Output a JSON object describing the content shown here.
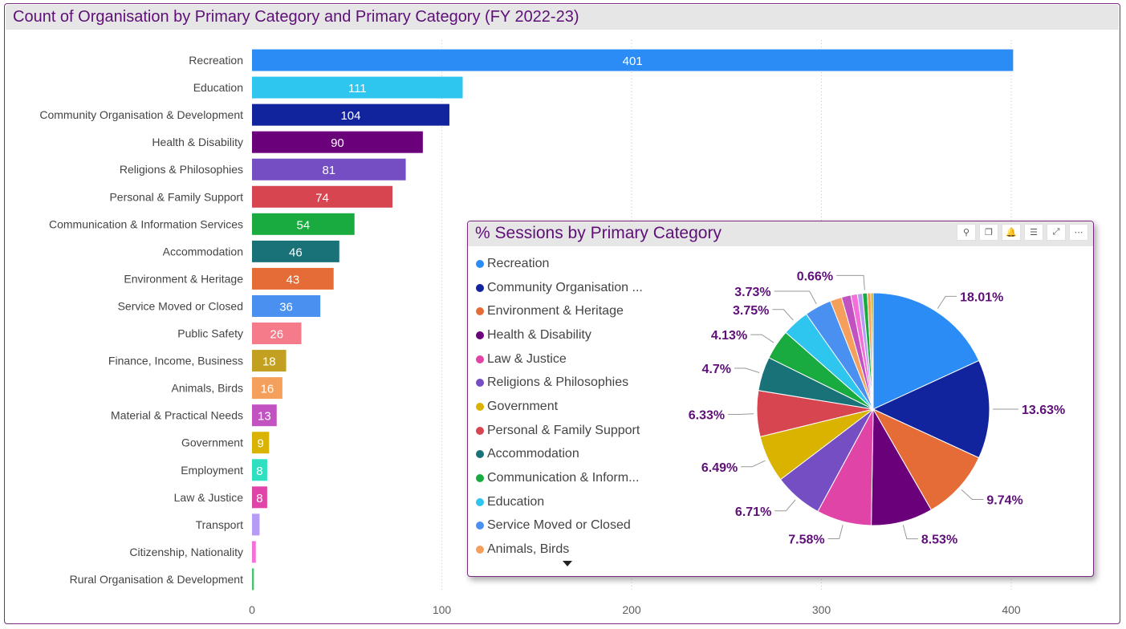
{
  "bar_chart": {
    "title": "Count of Organisation by Primary Category and Primary Category (FY 2022-23)"
  },
  "pie_chart": {
    "title": "% Sessions by Primary Category",
    "toolbar": [
      {
        "name": "pin-icon",
        "glyph": "⚲"
      },
      {
        "name": "copy-icon",
        "glyph": "❐"
      },
      {
        "name": "bell-icon",
        "glyph": "🔔"
      },
      {
        "name": "filter-icon",
        "glyph": "☰"
      },
      {
        "name": "focus-mode-icon",
        "glyph": "⤢"
      },
      {
        "name": "more-options-icon",
        "glyph": "⋯"
      }
    ],
    "legend": [
      {
        "label": "Recreation",
        "color": "#2b8cf5"
      },
      {
        "label": "Community Organisation ...",
        "color": "#12239e"
      },
      {
        "label": "Environment & Heritage",
        "color": "#e66c37"
      },
      {
        "label": "Health & Disability",
        "color": "#6b007b"
      },
      {
        "label": "Law & Justice",
        "color": "#e044a7"
      },
      {
        "label": "Religions & Philosophies",
        "color": "#744ec2"
      },
      {
        "label": "Government",
        "color": "#d9b300"
      },
      {
        "label": "Personal & Family Support",
        "color": "#d64550"
      },
      {
        "label": "Accommodation",
        "color": "#197278"
      },
      {
        "label": "Communication & Inform...",
        "color": "#1aab40"
      },
      {
        "label": "Education",
        "color": "#2ec5ef"
      },
      {
        "label": "Service Moved or Closed",
        "color": "#4a90f0"
      },
      {
        "label": "Animals, Birds",
        "color": "#f4a05c"
      }
    ]
  },
  "chart_data": [
    {
      "type": "bar",
      "orientation": "horizontal",
      "title": "Count of Organisation by Primary Category and Primary Category (FY 2022-23)",
      "categories": [
        "Recreation",
        "Education",
        "Community Organisation & Development",
        "Health & Disability",
        "Religions & Philosophies",
        "Personal & Family Support",
        "Communication & Information Services",
        "Accommodation",
        "Environment & Heritage",
        "Service Moved or Closed",
        "Public Safety",
        "Finance, Income, Business",
        "Animals, Birds",
        "Material & Practical Needs",
        "Government",
        "Employment",
        "Law & Justice",
        "Transport",
        "Citizenship, Nationality",
        "Rural Organisation & Development"
      ],
      "values": [
        401,
        111,
        104,
        90,
        81,
        74,
        54,
        46,
        43,
        36,
        26,
        18,
        16,
        13,
        9,
        8,
        8,
        4,
        2,
        1
      ],
      "data_labels": [
        "401",
        "111",
        "104",
        "90",
        "81",
        "74",
        "54",
        "46",
        "43",
        "36",
        "26",
        "18",
        "16",
        "13",
        "9",
        "8",
        "8",
        "",
        "",
        ""
      ],
      "colors": [
        "#2b8cf5",
        "#2ec5ef",
        "#12239e",
        "#6b007b",
        "#744ec2",
        "#d64550",
        "#1aab40",
        "#197278",
        "#e66c37",
        "#4a90f0",
        "#f57a8a",
        "#c4a021",
        "#f4a05c",
        "#c251c2",
        "#d9b300",
        "#2ee0c0",
        "#e044a7",
        "#b79cf5",
        "#f46fd8",
        "#45c26a"
      ],
      "x_ticks": [
        0,
        100,
        200,
        300,
        400
      ],
      "xlim": [
        0,
        440
      ],
      "grid": true
    },
    {
      "type": "pie",
      "title": "% Sessions by Primary Category",
      "start_angle_deg": 0,
      "slices": [
        {
          "label": "Recreation",
          "value": 18.01,
          "display": "18.01%",
          "color": "#2b8cf5"
        },
        {
          "label": "Community Organisation & Development",
          "value": 13.63,
          "display": "13.63%",
          "color": "#12239e"
        },
        {
          "label": "Environment & Heritage",
          "value": 9.74,
          "display": "9.74%",
          "color": "#e66c37"
        },
        {
          "label": "Health & Disability",
          "value": 8.53,
          "display": "8.53%",
          "color": "#6b007b"
        },
        {
          "label": "Law & Justice",
          "value": 7.58,
          "display": "7.58%",
          "color": "#e044a7"
        },
        {
          "label": "Religions & Philosophies",
          "value": 6.71,
          "display": "6.71%",
          "color": "#744ec2"
        },
        {
          "label": "Government",
          "value": 6.49,
          "display": "6.49%",
          "color": "#d9b300"
        },
        {
          "label": "Personal & Family Support",
          "value": 6.33,
          "display": "6.33%",
          "color": "#d64550"
        },
        {
          "label": "Accommodation",
          "value": 4.7,
          "display": "4.7%",
          "color": "#197278"
        },
        {
          "label": "Communication & Information Services",
          "value": 4.13,
          "display": "4.13%",
          "color": "#1aab40"
        },
        {
          "label": "Education",
          "value": 3.75,
          "display": "3.75%",
          "color": "#2ec5ef"
        },
        {
          "label": "Service Moved or Closed",
          "value": 3.73,
          "display": "3.73%",
          "color": "#4a90f0"
        },
        {
          "label": "Animals, Birds",
          "value": 1.6,
          "display": "",
          "color": "#f4a05c"
        },
        {
          "label": "",
          "value": 1.3,
          "display": "",
          "color": "#c251c2"
        },
        {
          "label": "",
          "value": 0.9,
          "display": "",
          "color": "#f46fd8"
        },
        {
          "label": "",
          "value": 0.7,
          "display": "",
          "color": "#b79cf5"
        },
        {
          "label": "",
          "value": 0.66,
          "display": "0.66%",
          "color": "#1aab40"
        },
        {
          "label": "",
          "value": 0.5,
          "display": "",
          "color": "#f4a05c"
        },
        {
          "label": "",
          "value": 0.3,
          "display": "",
          "color": "#c4a021"
        }
      ]
    }
  ]
}
